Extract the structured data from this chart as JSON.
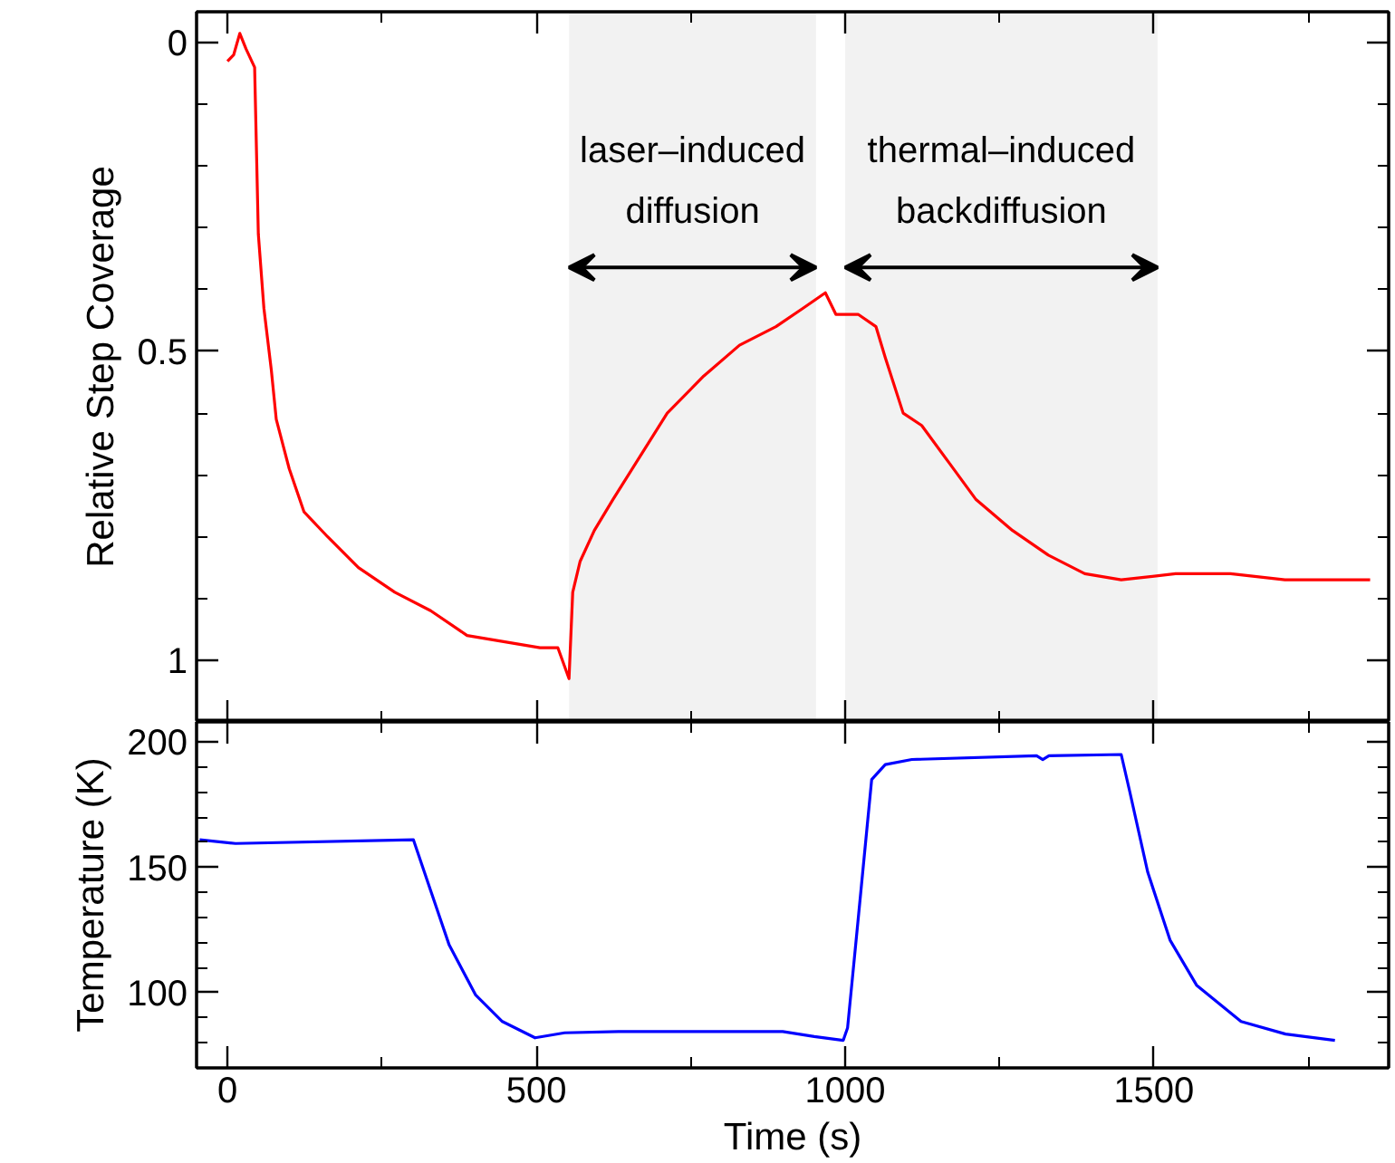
{
  "chart_data": [
    {
      "type": "line",
      "ylabel": "Relative Step Coverage",
      "xlim": [
        -50,
        1880
      ],
      "ylim": [
        1.1,
        -0.05
      ],
      "tick_labels": "y",
      "xticks": [
        0,
        {
          "value": 250,
          "label": null
        },
        500,
        {
          "value": 750,
          "label": null
        },
        1000,
        {
          "value": 1250,
          "label": null
        },
        1500,
        {
          "value": 1750,
          "label": null
        }
      ],
      "yticks": [
        0,
        {
          "value": 0.1,
          "label": null
        },
        {
          "value": 0.2,
          "label": null
        },
        {
          "value": 0.3,
          "label": null
        },
        {
          "value": 0.4,
          "label": null
        },
        0.5,
        {
          "value": 0.6,
          "label": null
        },
        {
          "value": 0.7,
          "label": null
        },
        {
          "value": 0.8,
          "label": null
        },
        {
          "value": 0.9,
          "label": null
        },
        1
      ],
      "bands": [
        {
          "axis": "x",
          "from": 553,
          "to": 953,
          "label": "laser–induced\ndiffusion"
        },
        {
          "axis": "x",
          "from": 1000,
          "to": 1506,
          "label": "thermal–induced\nbackdiffusion"
        }
      ],
      "series": [
        {
          "color": "#ff0000",
          "x": [
            0,
            10,
            20,
            30,
            44,
            50,
            59,
            71,
            79,
            100,
            124,
            162,
            212,
            271,
            329,
            388,
            447,
            506,
            535,
            553,
            559,
            571,
            594,
            624,
            668,
            712,
            771,
            829,
            888,
            932,
            968,
            985,
            1021,
            1050,
            1065,
            1094,
            1124,
            1168,
            1212,
            1271,
            1329,
            1388,
            1447,
            1535,
            1624,
            1712,
            1850
          ],
          "values": [
            0.03,
            0.02,
            -0.015,
            0.01,
            0.04,
            0.31,
            0.43,
            0.53,
            0.61,
            0.69,
            0.76,
            0.8,
            0.85,
            0.89,
            0.92,
            0.96,
            0.97,
            0.98,
            0.98,
            1.03,
            0.89,
            0.84,
            0.79,
            0.74,
            0.67,
            0.6,
            0.54,
            0.49,
            0.46,
            0.43,
            0.405,
            0.44,
            0.44,
            0.46,
            0.51,
            0.6,
            0.62,
            0.68,
            0.74,
            0.79,
            0.83,
            0.86,
            0.87,
            0.86,
            0.86,
            0.87,
            0.87
          ]
        }
      ]
    },
    {
      "type": "line",
      "xlabel": "Time (s)",
      "ylabel": "Temperature (K)",
      "xlim": [
        -50,
        1880
      ],
      "ylim": [
        70,
        208
      ],
      "xticks": [
        0,
        {
          "value": 250,
          "label": null
        },
        500,
        {
          "value": 750,
          "label": null
        },
        1000,
        {
          "value": 1250,
          "label": null
        },
        1500,
        {
          "value": 1750,
          "label": null
        }
      ],
      "yticks": [
        {
          "value": 80,
          "label": null
        },
        {
          "value": 90,
          "label": null
        },
        100,
        {
          "value": 110,
          "label": null
        },
        {
          "value": 120,
          "label": null
        },
        {
          "value": 130,
          "label": null
        },
        {
          "value": 140,
          "label": null
        },
        150,
        {
          "value": 160,
          "label": null
        },
        {
          "value": 170,
          "label": null
        },
        {
          "value": 180,
          "label": null
        },
        {
          "value": 190,
          "label": null
        },
        200
      ],
      "series": [
        {
          "color": "#0000ff",
          "x": [
            -45,
            13,
            301,
            330,
            359,
            402,
            445,
            498,
            546,
            633,
            899,
            950,
            997,
            1004,
            1022,
            1043,
            1065,
            1108,
            1310,
            1320,
            1330,
            1447,
            1461,
            1490,
            1526,
            1569,
            1641,
            1713,
            1793
          ],
          "values": [
            161,
            159.5,
            161,
            140,
            119,
            99,
            88.5,
            82,
            84,
            84.5,
            84.5,
            82.5,
            81,
            86,
            131.5,
            185,
            191,
            193,
            194.5,
            193,
            194.5,
            195,
            180,
            148,
            121,
            103,
            88.5,
            83.5,
            81
          ]
        }
      ]
    }
  ]
}
